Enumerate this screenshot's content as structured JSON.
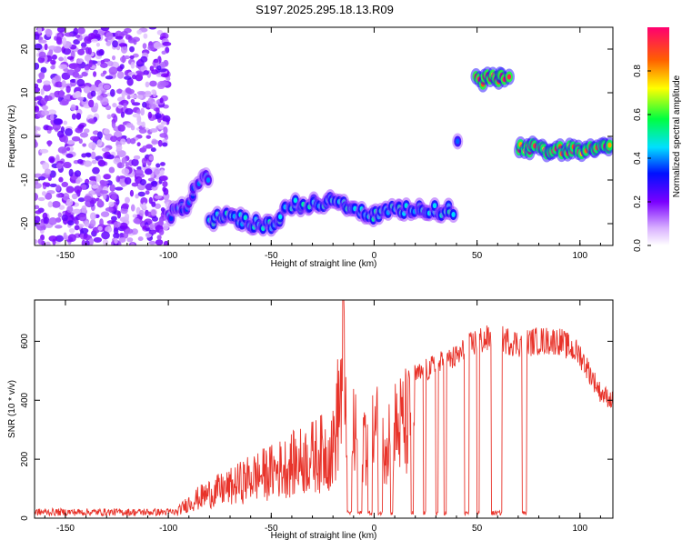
{
  "title": "S197.2025.295.18.13.R09",
  "chart_data": [
    {
      "type": "heatmap",
      "xlabel": "Height of straight line (km)",
      "ylabel": "Frequency (Hz)",
      "xlim": [
        -165,
        116
      ],
      "ylim": [
        -25,
        25
      ],
      "xticks": [
        -150,
        -100,
        -50,
        0,
        50,
        100
      ],
      "yticks": [
        -20,
        -10,
        0,
        10,
        20
      ],
      "colorbar": {
        "label": "Normalized spectral amplitude",
        "range": [
          0,
          1
        ],
        "ticks": [
          0.0,
          0.2,
          0.4,
          0.6,
          0.8
        ]
      },
      "features": [
        {
          "name": "noise-field",
          "x_range": [
            -165,
            -100
          ],
          "y_range": [
            -25,
            25
          ],
          "amplitude": 0.15
        },
        {
          "name": "low-band-rising",
          "points": [
            [
              -100,
              -18
            ],
            [
              -95,
              -17
            ],
            [
              -90,
              -15
            ],
            [
              -85,
              -10
            ],
            [
              -80,
              -9
            ]
          ],
          "amplitude": 0.35
        },
        {
          "name": "low-band",
          "points": [
            [
              -80,
              -19
            ],
            [
              -70,
              -18
            ],
            [
              -60,
              -20
            ],
            [
              -50,
              -20
            ],
            [
              -40,
              -16
            ],
            [
              -30,
              -15
            ],
            [
              -20,
              -15
            ],
            [
              -10,
              -17
            ],
            [
              0,
              -18
            ],
            [
              10,
              -17
            ],
            [
              20,
              -17
            ],
            [
              30,
              -17
            ],
            [
              38,
              -17
            ]
          ],
          "amplitude": 0.45
        },
        {
          "name": "spike-40",
          "points": [
            [
              41,
              -2
            ]
          ],
          "amplitude": 0.4
        },
        {
          "name": "high-band",
          "points": [
            [
              50,
              13
            ],
            [
              55,
              13
            ],
            [
              60,
              13
            ],
            [
              65,
              13
            ]
          ],
          "amplitude": 0.85
        },
        {
          "name": "right-band",
          "points": [
            [
              70,
              -2
            ],
            [
              80,
              -3
            ],
            [
              90,
              -3
            ],
            [
              100,
              -3
            ],
            [
              110,
              -2
            ],
            [
              115,
              -2
            ]
          ],
          "amplitude": 0.8
        }
      ]
    },
    {
      "type": "line",
      "xlabel": "Height of straight line (km)",
      "ylabel": "SNR (10 * v/v)",
      "xlim": [
        -165,
        116
      ],
      "ylim": [
        0,
        740
      ],
      "xticks": [
        -150,
        -100,
        -50,
        0,
        50,
        100
      ],
      "yticks": [
        0,
        200,
        400,
        600
      ],
      "series": [
        {
          "name": "SNR",
          "color": "#e8332a",
          "envelope": [
            [
              -165,
              20
            ],
            [
              -100,
              20
            ],
            [
              -95,
              40
            ],
            [
              -90,
              80
            ],
            [
              -80,
              130
            ],
            [
              -70,
              160
            ],
            [
              -60,
              210
            ],
            [
              -50,
              240
            ],
            [
              -40,
              280
            ],
            [
              -30,
              320
            ],
            [
              -20,
              360
            ],
            [
              -15,
              740
            ],
            [
              -10,
              420
            ],
            [
              0,
              440
            ],
            [
              10,
              460
            ],
            [
              20,
              520
            ],
            [
              30,
              560
            ],
            [
              40,
              590
            ],
            [
              48,
              640
            ],
            [
              50,
              650
            ],
            [
              60,
              660
            ],
            [
              70,
              640
            ],
            [
              80,
              650
            ],
            [
              90,
              650
            ],
            [
              100,
              600
            ],
            [
              110,
              460
            ],
            [
              116,
              430
            ]
          ],
          "dropouts": [
            [
              -13,
              -11
            ],
            [
              -8,
              -6
            ],
            [
              -3,
              -1
            ],
            [
              2,
              4
            ],
            [
              8,
              9
            ],
            [
              18,
              19
            ],
            [
              24,
              25
            ],
            [
              30,
              31
            ],
            [
              34,
              35
            ],
            [
              44,
              46
            ],
            [
              50,
              51
            ],
            [
              57,
              62
            ],
            [
              72,
              74
            ]
          ]
        }
      ]
    }
  ]
}
